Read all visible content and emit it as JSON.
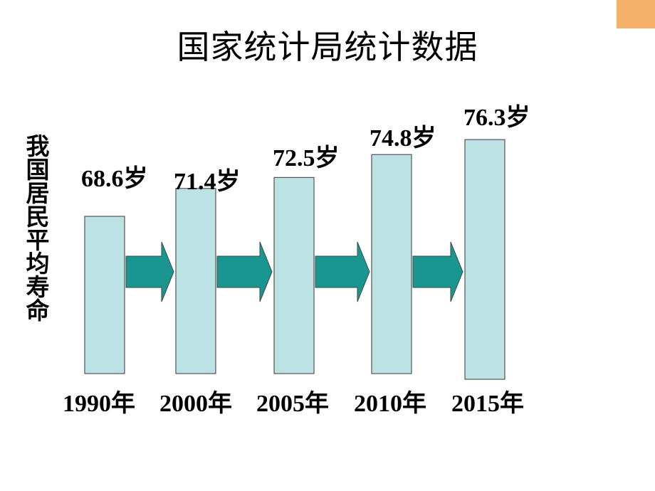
{
  "title": "国家统计局统计数据",
  "colors": {
    "bar_fill": "#bde2e3",
    "bar_stroke": "#555555",
    "arrow_fill": "#1a9690",
    "corner_accent": "#f5b16a"
  },
  "chart_data": {
    "type": "bar",
    "title": "",
    "ylabel": "我国居民平均寿命",
    "categories": [
      "1990年",
      "2000年",
      "2005年",
      "2010年",
      "2015年"
    ],
    "values": [
      68.6,
      71.4,
      72.5,
      74.8,
      76.3
    ],
    "value_labels": [
      "68.6岁",
      "71.4岁",
      "72.5岁",
      "74.8岁",
      "76.3岁"
    ],
    "arrows_between_bars": true,
    "grid": false,
    "axes_visible": false
  }
}
